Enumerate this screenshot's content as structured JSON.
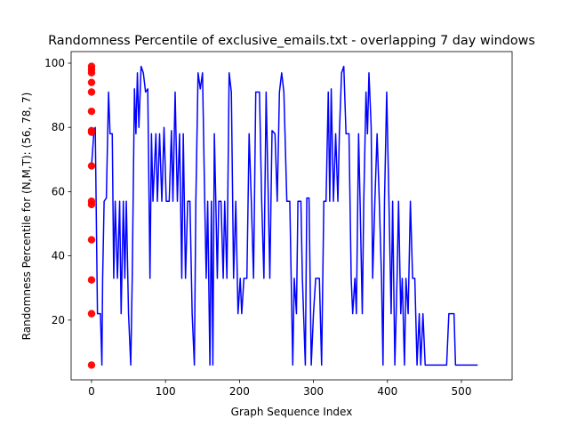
{
  "chart_data": {
    "type": "line",
    "title": "Randomness Percentile of exclusive_emails.txt - overlapping 7 day windows",
    "xlabel": "Graph Sequence Index",
    "ylabel": "Randomness Percentile for (N,M,T): (56, 78, 7)",
    "xlim": [
      -27.6,
      568.5
    ],
    "ylim": [
      1.4,
      103.6
    ],
    "xticks": [
      0,
      100,
      200,
      300,
      400,
      500
    ],
    "yticks": [
      20,
      40,
      60,
      80,
      100
    ],
    "grid": false,
    "series": [
      {
        "type": "line",
        "color": "#0000ff",
        "x": [
          0,
          3,
          5,
          8,
          12,
          14,
          15,
          17,
          20,
          23,
          25,
          28,
          30,
          32,
          35,
          38,
          40,
          43,
          45,
          47,
          50,
          53,
          55,
          58,
          60,
          62,
          64,
          67,
          70,
          73,
          76,
          79,
          81,
          83,
          87,
          89,
          92,
          95,
          98,
          101,
          105,
          108,
          110,
          113,
          116,
          119,
          122,
          124,
          127,
          130,
          133,
          136,
          139,
          141,
          144,
          147,
          150,
          153,
          155,
          157,
          160,
          162,
          164,
          166,
          168,
          170,
          172,
          175,
          178,
          180,
          183,
          186,
          189,
          192,
          195,
          198,
          201,
          203,
          206,
          210,
          213,
          216,
          219,
          222,
          227,
          230,
          233,
          236,
          239,
          241,
          244,
          248,
          251,
          254,
          257,
          260,
          264,
          268,
          272,
          274,
          277,
          279,
          283,
          285,
          289,
          291,
          294,
          297,
          300,
          303,
          308,
          311,
          314,
          317,
          320,
          322,
          324,
          327,
          330,
          333,
          335,
          338,
          341,
          344,
          348,
          351,
          353,
          356,
          358,
          361,
          363,
          366,
          368,
          371,
          373,
          375,
          378,
          380,
          383,
          386,
          389,
          392,
          394,
          396,
          399,
          402,
          405,
          407,
          410,
          413,
          415,
          418,
          420,
          423,
          425,
          428,
          431,
          434,
          437,
          440,
          443,
          445,
          448,
          451,
          460,
          480,
          483,
          490,
          492,
          522
        ],
        "values": [
          68,
          78,
          80,
          22,
          22,
          6,
          33,
          57,
          58,
          91,
          78,
          78,
          33,
          57,
          33,
          57,
          22,
          57,
          33,
          57,
          22,
          6,
          33,
          92,
          78,
          97,
          80,
          99,
          97,
          91,
          92,
          33,
          78,
          57,
          78,
          57,
          78,
          57,
          80,
          57,
          57,
          79,
          57,
          91,
          57,
          78,
          33,
          78,
          33,
          57,
          57,
          22,
          6,
          57,
          97,
          92,
          97,
          57,
          33,
          57,
          6,
          57,
          6,
          78,
          57,
          33,
          57,
          57,
          33,
          57,
          33,
          97,
          91,
          33,
          57,
          22,
          33,
          22,
          33,
          33,
          78,
          57,
          33,
          91,
          91,
          57,
          33,
          91,
          57,
          33,
          79,
          78,
          57,
          91,
          97,
          91,
          57,
          57,
          6,
          33,
          22,
          57,
          57,
          33,
          6,
          58,
          58,
          6,
          22,
          33,
          33,
          6,
          57,
          57,
          91,
          57,
          92,
          57,
          78,
          57,
          78,
          97,
          99,
          78,
          78,
          33,
          22,
          33,
          22,
          78,
          57,
          22,
          57,
          91,
          78,
          97,
          80,
          33,
          57,
          78,
          57,
          33,
          6,
          57,
          91,
          57,
          22,
          57,
          6,
          33,
          57,
          22,
          33,
          6,
          33,
          22,
          57,
          33,
          33,
          6,
          22,
          6,
          22,
          6,
          6,
          6,
          22,
          22,
          6,
          6
        ]
      },
      {
        "type": "scatter",
        "color": "#ff0000",
        "x": [
          0,
          0,
          0,
          0,
          0,
          0,
          0,
          0,
          0,
          0,
          0,
          0,
          0,
          0,
          0
        ],
        "values": [
          99,
          98,
          97,
          94,
          91,
          85,
          79,
          78.5,
          68,
          57,
          56,
          45,
          32.5,
          22,
          6
        ]
      }
    ]
  }
}
